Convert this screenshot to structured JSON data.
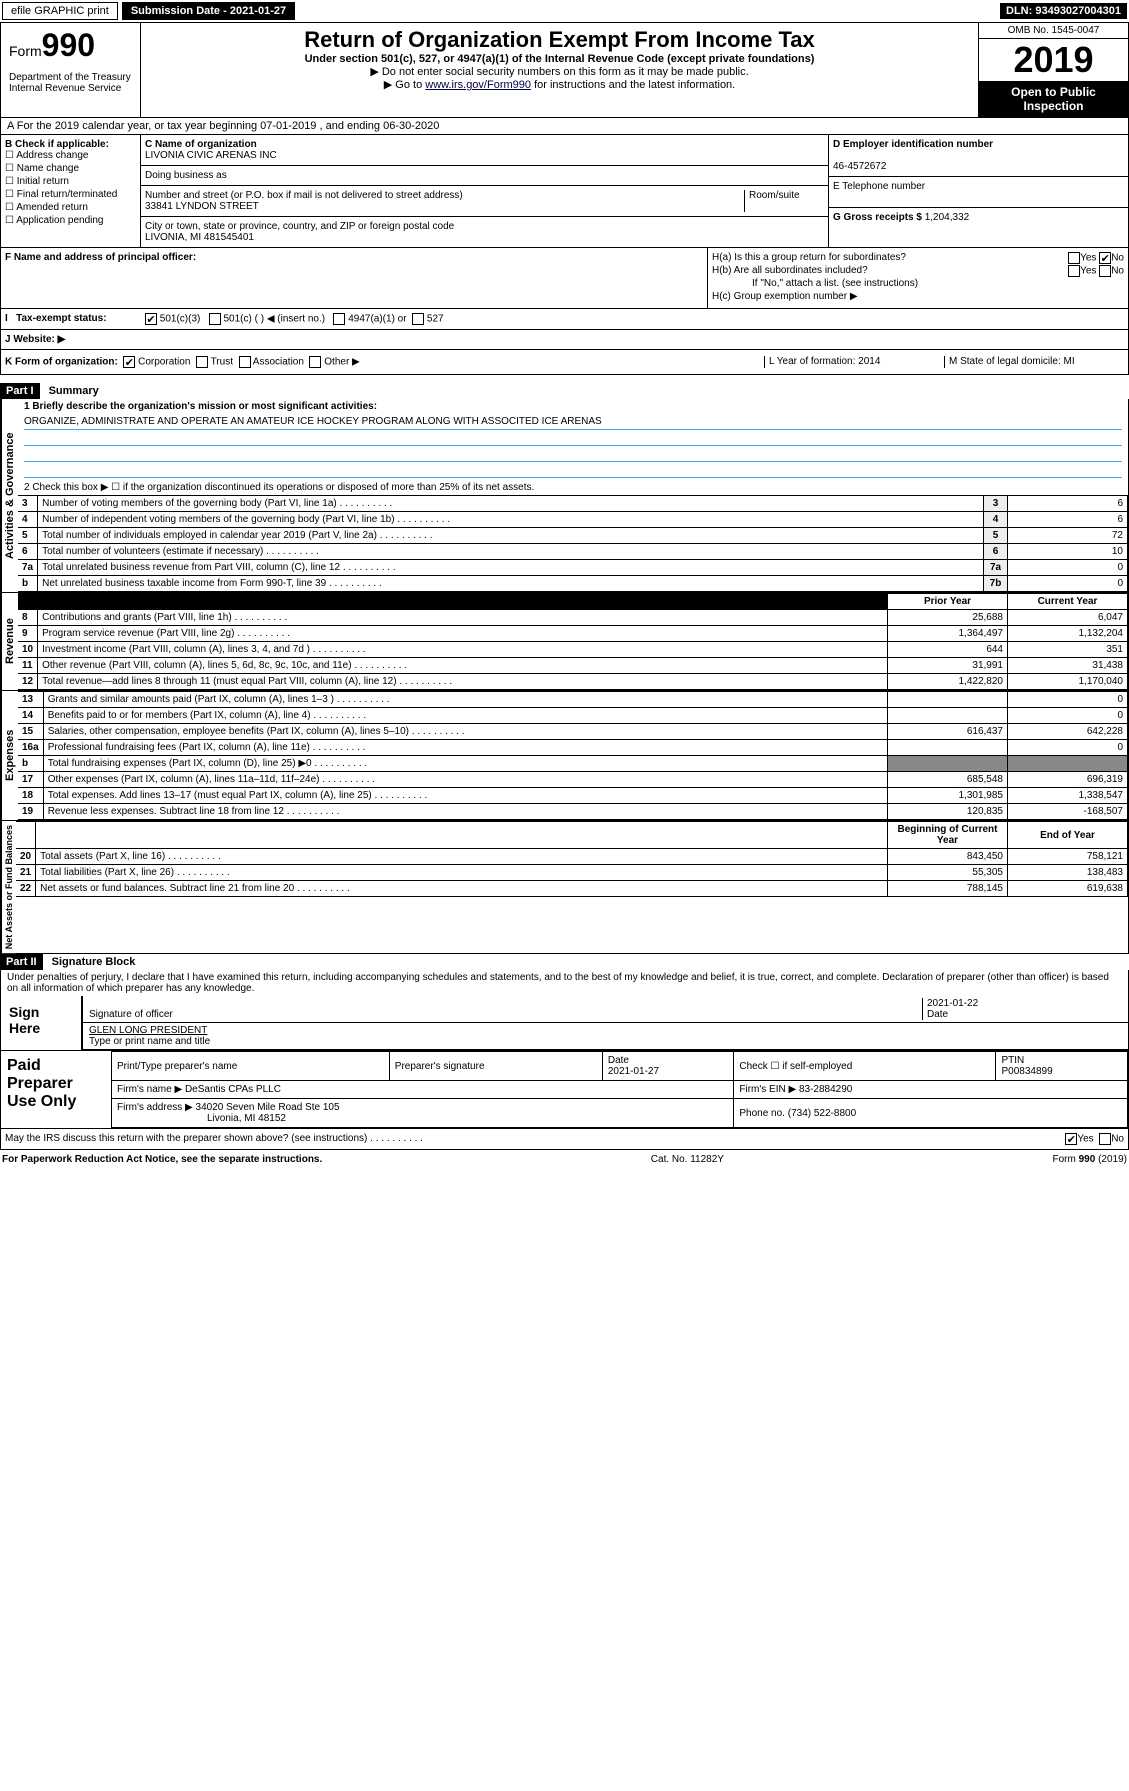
{
  "topbar": {
    "efile": "efile GRAPHIC print",
    "submission": "Submission Date - 2021-01-27",
    "dln": "DLN: 93493027004301"
  },
  "header": {
    "form": "Form",
    "num": "990",
    "dept": "Department of the Treasury\nInternal Revenue Service",
    "title": "Return of Organization Exempt From Income Tax",
    "sub1": "Under section 501(c), 527, or 4947(a)(1) of the Internal Revenue Code (except private foundations)",
    "sub2": "▶ Do not enter social security numbers on this form as it may be made public.",
    "sub3": "▶ Go to ",
    "link": "www.irs.gov/Form990",
    "sub3b": " for instructions and the latest information.",
    "omb": "OMB No. 1545-0047",
    "year": "2019",
    "open": "Open to Public Inspection"
  },
  "rowA": "A For the 2019 calendar year, or tax year beginning 07-01-2019     , and ending 06-30-2020",
  "colB": {
    "label": "B Check if applicable:",
    "items": [
      "Address change",
      "Name change",
      "Initial return",
      "Final return/terminated",
      "Amended return",
      "Application pending"
    ]
  },
  "colC": {
    "nameLbl": "C Name of organization",
    "name": "LIVONIA CIVIC ARENAS INC",
    "dba": "Doing business as",
    "addrLbl": "Number and street (or P.O. box if mail is not delivered to street address)",
    "room": "Room/suite",
    "addr": "33841 LYNDON STREET",
    "cityLbl": "City or town, state or province, country, and ZIP or foreign postal code",
    "city": "LIVONIA, MI  481545401"
  },
  "colD": {
    "einLbl": "D Employer identification number",
    "ein": "46-4572672",
    "telLbl": "E Telephone number",
    "grossLbl": "G Gross receipts $ ",
    "gross": "1,204,332"
  },
  "rowF": {
    "label": "F Name and address of principal officer:"
  },
  "rowH": {
    "a": "H(a)  Is this a group return for subordinates?",
    "b": "H(b)  Are all subordinates included?",
    "note": "If \"No,\" attach a list. (see instructions)",
    "c": "H(c)  Group exemption number ▶"
  },
  "rowI": {
    "label": "Tax-exempt status:",
    "opts": [
      "501(c)(3)",
      "501(c) (   ) ◀ (insert no.)",
      "4947(a)(1) or",
      "527"
    ]
  },
  "rowJ": {
    "label": "J   Website: ▶"
  },
  "rowK": {
    "label": "K Form of organization:",
    "opts": [
      "Corporation",
      "Trust",
      "Association",
      "Other ▶"
    ],
    "l": "L Year of formation: 2014",
    "m": "M State of legal domicile: MI"
  },
  "part1": {
    "hdr": "Part I",
    "title": "Summary",
    "q1": "1  Briefly describe the organization's mission or most significant activities:",
    "mission": "ORGANIZE, ADMINISTRATE AND OPERATE AN AMATEUR ICE HOCKEY PROGRAM ALONG WITH ASSOCITED ICE ARENAS",
    "q2": "2    Check this box ▶ ☐  if the organization discontinued its operations or disposed of more than 25% of its net assets.",
    "lines3_7": [
      {
        "n": "3",
        "t": "Number of voting members of the governing body (Part VI, line 1a)",
        "ln": "3",
        "v": "6"
      },
      {
        "n": "4",
        "t": "Number of independent voting members of the governing body (Part VI, line 1b)",
        "ln": "4",
        "v": "6"
      },
      {
        "n": "5",
        "t": "Total number of individuals employed in calendar year 2019 (Part V, line 2a)",
        "ln": "5",
        "v": "72"
      },
      {
        "n": "6",
        "t": "Total number of volunteers (estimate if necessary)",
        "ln": "6",
        "v": "10"
      },
      {
        "n": "7a",
        "t": "Total unrelated business revenue from Part VIII, column (C), line 12",
        "ln": "7a",
        "v": "0"
      },
      {
        "n": "b",
        "t": "Net unrelated business taxable income from Form 990-T, line 39",
        "ln": "7b",
        "v": "0"
      }
    ],
    "hdrPrior": "Prior Year",
    "hdrCurrent": "Current Year",
    "revenue": [
      {
        "n": "8",
        "t": "Contributions and grants (Part VIII, line 1h)",
        "p": "25,688",
        "c": "6,047"
      },
      {
        "n": "9",
        "t": "Program service revenue (Part VIII, line 2g)",
        "p": "1,364,497",
        "c": "1,132,204"
      },
      {
        "n": "10",
        "t": "Investment income (Part VIII, column (A), lines 3, 4, and 7d )",
        "p": "644",
        "c": "351"
      },
      {
        "n": "11",
        "t": "Other revenue (Part VIII, column (A), lines 5, 6d, 8c, 9c, 10c, and 11e)",
        "p": "31,991",
        "c": "31,438"
      },
      {
        "n": "12",
        "t": "Total revenue—add lines 8 through 11 (must equal Part VIII, column (A), line 12)",
        "p": "1,422,820",
        "c": "1,170,040"
      }
    ],
    "expenses": [
      {
        "n": "13",
        "t": "Grants and similar amounts paid (Part IX, column (A), lines 1–3 )",
        "p": "",
        "c": "0"
      },
      {
        "n": "14",
        "t": "Benefits paid to or for members (Part IX, column (A), line 4)",
        "p": "",
        "c": "0"
      },
      {
        "n": "15",
        "t": "Salaries, other compensation, employee benefits (Part IX, column (A), lines 5–10)",
        "p": "616,437",
        "c": "642,228"
      },
      {
        "n": "16a",
        "t": "Professional fundraising fees (Part IX, column (A), line 11e)",
        "p": "",
        "c": "0"
      },
      {
        "n": "b",
        "t": "Total fundraising expenses (Part IX, column (D), line 25) ▶0",
        "p": "—",
        "c": "—"
      },
      {
        "n": "17",
        "t": "Other expenses (Part IX, column (A), lines 11a–11d, 11f–24e)",
        "p": "685,548",
        "c": "696,319"
      },
      {
        "n": "18",
        "t": "Total expenses. Add lines 13–17 (must equal Part IX, column (A), line 25)",
        "p": "1,301,985",
        "c": "1,338,547"
      },
      {
        "n": "19",
        "t": "Revenue less expenses. Subtract line 18 from line 12",
        "p": "120,835",
        "c": "-168,507"
      }
    ],
    "hdrBegin": "Beginning of Current Year",
    "hdrEnd": "End of Year",
    "netassets": [
      {
        "n": "20",
        "t": "Total assets (Part X, line 16)",
        "p": "843,450",
        "c": "758,121"
      },
      {
        "n": "21",
        "t": "Total liabilities (Part X, line 26)",
        "p": "55,305",
        "c": "138,483"
      },
      {
        "n": "22",
        "t": "Net assets or fund balances. Subtract line 21 from line 20",
        "p": "788,145",
        "c": "619,638"
      }
    ],
    "sideActivities": "Activities & Governance",
    "sideRevenue": "Revenue",
    "sideExpenses": "Expenses",
    "sideNet": "Net Assets or Fund Balances"
  },
  "part2": {
    "hdr": "Part II",
    "title": "Signature Block",
    "decl": "Under penalties of perjury, I declare that I have examined this return, including accompanying schedules and statements, and to the best of my knowledge and belief, it is true, correct, and complete. Declaration of preparer (other than officer) is based on all information of which preparer has any knowledge.",
    "signHere": "Sign Here",
    "sigOfficer": "Signature of officer",
    "date": "2021-01-22",
    "dateLbl": "Date",
    "officer": "GLEN LONG  PRESIDENT",
    "typeLbl": "Type or print name and title"
  },
  "paid": {
    "label": "Paid Preparer Use Only",
    "h1": "Print/Type preparer's name",
    "h2": "Preparer's signature",
    "h3": "Date",
    "dateVal": "2021-01-27",
    "h4": "Check ☐ if self-employed",
    "h5": "PTIN",
    "ptin": "P00834899",
    "firmLbl": "Firm's name      ▶",
    "firm": "DeSantis CPAs PLLC",
    "einLbl": "Firm's EIN ▶",
    "ein": "83-2884290",
    "addrLbl": "Firm's address ▶",
    "addr1": "34020 Seven Mile Road Ste 105",
    "addr2": "Livonia, MI  48152",
    "phoneLbl": "Phone no.",
    "phone": "(734) 522-8800"
  },
  "discuss": "May the IRS discuss this return with the preparer shown above? (see instructions)",
  "footer": {
    "left": "For Paperwork Reduction Act Notice, see the separate instructions.",
    "mid": "Cat. No. 11282Y",
    "right": "Form 990 (2019)"
  }
}
